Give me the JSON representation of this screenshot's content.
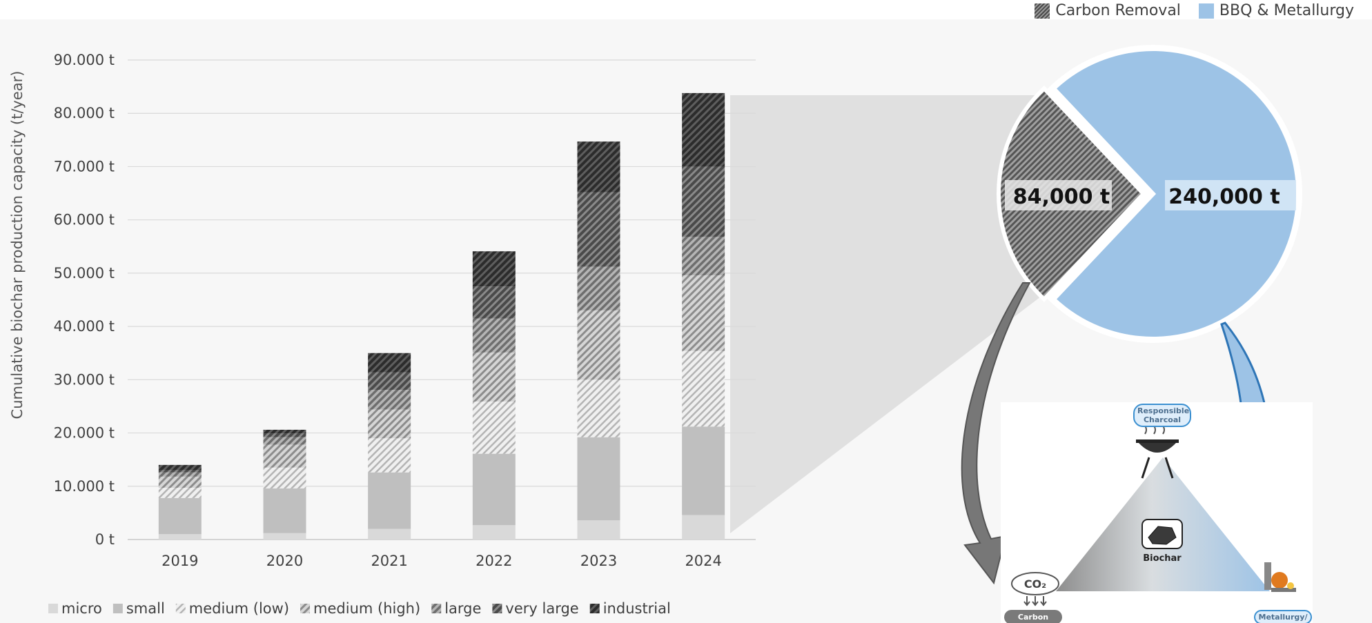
{
  "top_legend": [
    {
      "label": "Carbon Removal",
      "color": "#555555",
      "pattern": "hatch"
    },
    {
      "label": "BBQ & Metallurgy",
      "color": "#9dc3e6",
      "pattern": "solid"
    }
  ],
  "chart_data": [
    {
      "type": "bar",
      "stacked": true,
      "ylabel": "Cumulative biochar production capacity (t/year)",
      "ylim": [
        0,
        90000
      ],
      "yticks": [
        "0 t",
        "10.000 t",
        "20.000 t",
        "30.000 t",
        "40.000 t",
        "50.000 t",
        "60.000 t",
        "70.000 t",
        "80.000 t",
        "90.000 t"
      ],
      "categories": [
        "2019",
        "2020",
        "2021",
        "2022",
        "2023",
        "2024"
      ],
      "grid": true,
      "legend_position": "bottom",
      "series": [
        {
          "name": "micro",
          "values": [
            1000,
            1200,
            2000,
            2700,
            3600,
            4600
          ]
        },
        {
          "name": "small",
          "values": [
            6800,
            8400,
            10600,
            13400,
            15600,
            16600
          ]
        },
        {
          "name": "medium (low)",
          "values": [
            1900,
            3900,
            6400,
            9800,
            10800,
            14200
          ]
        },
        {
          "name": "medium (high)",
          "values": [
            2100,
            4300,
            5400,
            9200,
            13000,
            14200
          ]
        },
        {
          "name": "large",
          "values": [
            800,
            1400,
            3700,
            6400,
            8200,
            7200
          ]
        },
        {
          "name": "very large",
          "values": [
            400,
            700,
            3300,
            6000,
            14000,
            13200
          ]
        },
        {
          "name": "industrial",
          "values": [
            1000,
            700,
            3600,
            6600,
            9500,
            13800
          ]
        }
      ]
    },
    {
      "type": "pie",
      "slices": [
        {
          "name": "Carbon Removal",
          "value": 84000,
          "label": "84,000 t"
        },
        {
          "name": "BBQ & Metallurgy",
          "value": 240000,
          "label": "240,000 t"
        }
      ]
    }
  ],
  "diagram": {
    "top_label_line1": "Responsible",
    "top_label_line2": "Charcoal",
    "center_label": "Biochar",
    "co2_label": "CO₂",
    "bottom_left_label": "Carbon",
    "bottom_right_label": "Metallurgy/"
  }
}
